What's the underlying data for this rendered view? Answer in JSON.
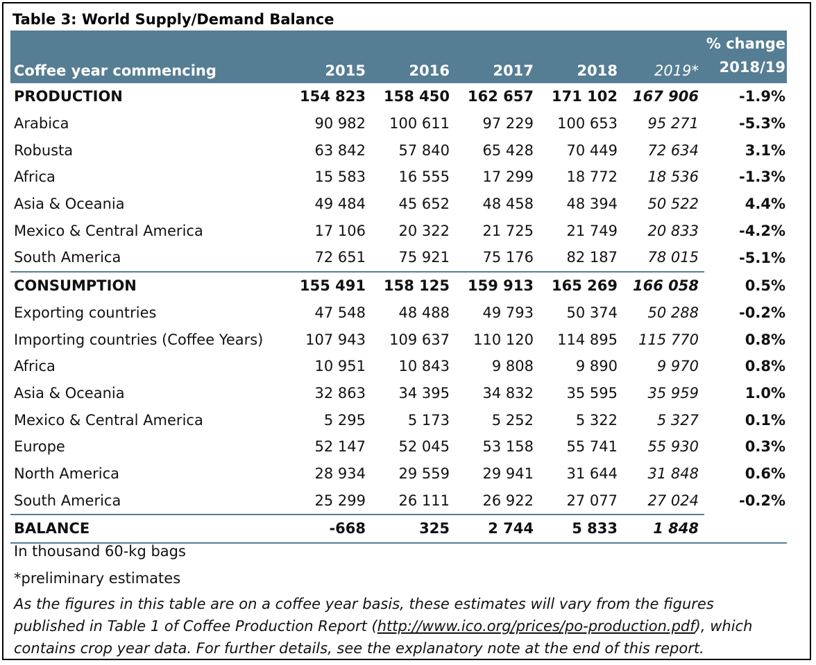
{
  "title": "Table 3: World Supply/Demand Balance",
  "header": {
    "label": "Coffee year commencing",
    "years": [
      "2015",
      "2016",
      "2017",
      "2018",
      "2019*"
    ],
    "pct_line1": "% change",
    "pct_line2": "2018/19"
  },
  "rows": [
    {
      "label": "PRODUCTION",
      "v": [
        "154 823",
        "158 450",
        "162 657",
        "171 102",
        "167 906"
      ],
      "pct": "-1.9%"
    },
    {
      "label": "Arabica",
      "v": [
        "90 982",
        "100 611",
        "97 229",
        "100 653",
        "95 271"
      ],
      "pct": "-5.3%"
    },
    {
      "label": "Robusta",
      "v": [
        "63 842",
        "57 840",
        "65 428",
        "70 449",
        "72 634"
      ],
      "pct": "3.1%"
    },
    {
      "label": "Africa",
      "v": [
        "15 583",
        "16 555",
        "17 299",
        "18 772",
        "18 536"
      ],
      "pct": "-1.3%"
    },
    {
      "label": "Asia & Oceania",
      "v": [
        "49 484",
        "45 652",
        "48 458",
        "48 394",
        "50 522"
      ],
      "pct": "4.4%"
    },
    {
      "label": "Mexico & Central America",
      "v": [
        "17 106",
        "20 322",
        "21 725",
        "21 749",
        "20 833"
      ],
      "pct": "-4.2%"
    },
    {
      "label": "South America",
      "v": [
        "72 651",
        "75 921",
        "75 176",
        "82 187",
        "78 015"
      ],
      "pct": "-5.1%"
    },
    {
      "label": "CONSUMPTION",
      "v": [
        "155 491",
        "158 125",
        "159 913",
        "165 269",
        "166 058"
      ],
      "pct": "0.5%"
    },
    {
      "label": "Exporting countries",
      "v": [
        "47 548",
        "48 488",
        "49 793",
        "50 374",
        "50 288"
      ],
      "pct": "-0.2%"
    },
    {
      "label": "Importing countries (Coffee Years)",
      "v": [
        "107 943",
        "109 637",
        "110 120",
        "114 895",
        "115 770"
      ],
      "pct": "0.8%"
    },
    {
      "label": "Africa",
      "v": [
        "10 951",
        "10 843",
        "9 808",
        "9 890",
        "9 970"
      ],
      "pct": "0.8%"
    },
    {
      "label": "Asia & Oceania",
      "v": [
        "32 863",
        "34 395",
        "34 832",
        "35 595",
        "35 959"
      ],
      "pct": "1.0%"
    },
    {
      "label": "Mexico & Central America",
      "v": [
        "5 295",
        "5 173",
        "5 252",
        "5 322",
        "5 327"
      ],
      "pct": "0.1%"
    },
    {
      "label": "Europe",
      "v": [
        "52 147",
        "52 045",
        "53 158",
        "55 741",
        "55 930"
      ],
      "pct": "0.3%"
    },
    {
      "label": "North America",
      "v": [
        "28 934",
        "29 559",
        "29 941",
        "31 644",
        "31 848"
      ],
      "pct": "0.6%"
    },
    {
      "label": "South America",
      "v": [
        "25 299",
        "26 111",
        "26 922",
        "27 077",
        "27 024"
      ],
      "pct": "-0.2%"
    },
    {
      "label": "BALANCE",
      "v": [
        "-668",
        "325",
        "2 744",
        "5 833",
        "1 848"
      ],
      "pct": ""
    }
  ],
  "footer": {
    "note1": "In thousand 60-kg bags",
    "note2": "*preliminary estimates",
    "note3_pre": "As the figures in this table are on a coffee year basis, these estimates will vary from the figures published in Table 1 of Coffee Production Report (",
    "note3_link": "http://www.ico.org/prices/po-production.pdf",
    "note3_post": "), which contains crop year data. For further details, see the explanatory note at the end of this report."
  }
}
